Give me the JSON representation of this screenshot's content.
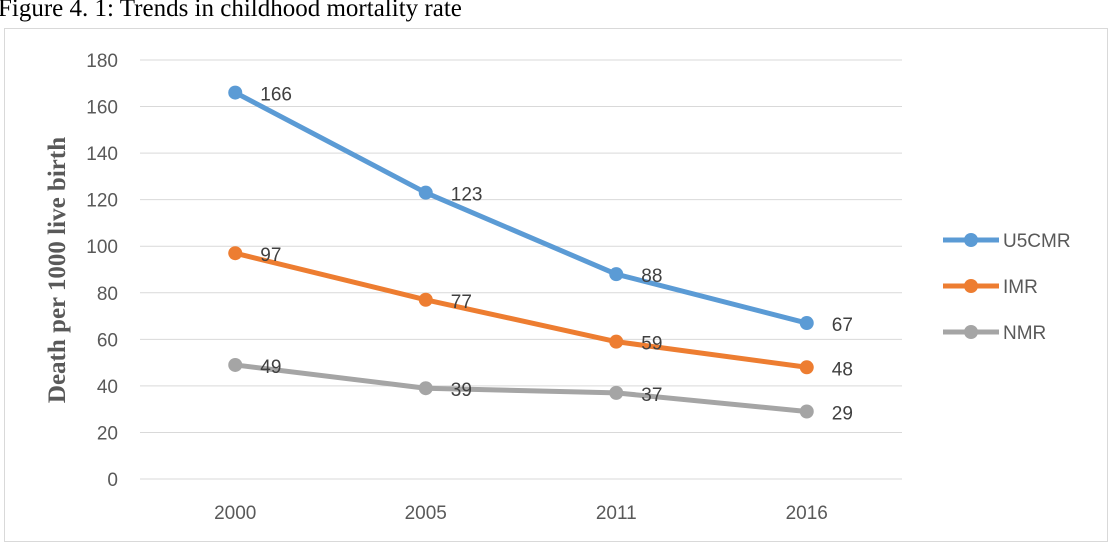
{
  "figure_caption": "Figure 4. 1: Trends in childhood mortality rate",
  "chart_data": {
    "type": "line",
    "title": "",
    "xlabel": "",
    "ylabel": "Death per 1000 live birth",
    "categories": [
      "2000",
      "2005",
      "2011",
      "2016"
    ],
    "ylim": [
      0,
      180
    ],
    "ytick_step": 20,
    "grid": true,
    "legend_position": "right",
    "series": [
      {
        "name": "U5CMR",
        "color": "#5b9bd5",
        "values": [
          166,
          123,
          88,
          67
        ]
      },
      {
        "name": "IMR",
        "color": "#ed7d31",
        "values": [
          97,
          77,
          59,
          48
        ]
      },
      {
        "name": "NMR",
        "color": "#a5a5a5",
        "values": [
          49,
          39,
          37,
          29
        ]
      }
    ]
  }
}
